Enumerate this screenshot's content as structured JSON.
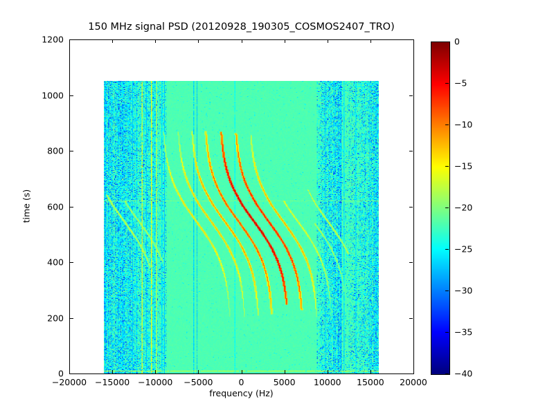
{
  "chart_data": {
    "type": "heatmap",
    "title": "150 MHz signal PSD (20120928_190305_COSMOS2407_TRO)",
    "xlabel": "frequency (Hz)",
    "ylabel": "time (s)",
    "xlim": [
      -20000,
      20000
    ],
    "ylim": [
      0,
      1200
    ],
    "x_ticks": [
      -20000,
      -15000,
      -10000,
      -5000,
      0,
      5000,
      10000,
      15000,
      20000
    ],
    "x_tick_labels": [
      "−20000",
      "−15000",
      "−10000",
      "−5000",
      "0",
      "5000",
      "10000",
      "15000",
      "20000"
    ],
    "y_ticks": [
      0,
      200,
      400,
      600,
      800,
      1000,
      1200
    ],
    "y_tick_labels": [
      "0",
      "200",
      "400",
      "600",
      "800",
      "1000",
      "1200"
    ],
    "grid": false,
    "legend": "none",
    "colorbar": {
      "cmap": "jet",
      "vmin": -40,
      "vmax": 0,
      "ticks": [
        0,
        -5,
        -10,
        -15,
        -20,
        -25,
        -30,
        -35,
        -40
      ],
      "tick_labels": [
        "0",
        "−5",
        "−10",
        "−15",
        "−20",
        "−25",
        "−30",
        "−35",
        "−40"
      ],
      "position": "right"
    },
    "data_extent": {
      "freq": [
        -16000,
        16000
      ],
      "time": [
        0,
        1050
      ]
    },
    "background_level_db": -22,
    "noise_bands": [
      {
        "freq": [
          -16000,
          -8800
        ],
        "level_db": [
          -34,
          -23
        ],
        "density": 1.0
      },
      {
        "freq": [
          8800,
          11600
        ],
        "level_db": [
          -34,
          -23
        ],
        "density": 1.0
      },
      {
        "freq": [
          11600,
          13200
        ],
        "level_db": [
          -32,
          -23
        ],
        "density": 0.45
      },
      {
        "freq": [
          13200,
          16000
        ],
        "level_db": [
          -34,
          -23
        ],
        "density": 0.9
      }
    ],
    "vertical_lines": [
      {
        "freq": -12750,
        "level_db": -27
      },
      {
        "freq": -12350,
        "level_db": -26
      },
      {
        "freq": -11600,
        "level_db": -17
      },
      {
        "freq": -11150,
        "level_db": -27
      },
      {
        "freq": -10500,
        "level_db": -16
      },
      {
        "freq": -10250,
        "level_db": -26
      },
      {
        "freq": -9950,
        "level_db": -18
      },
      {
        "freq": -9300,
        "level_db": -26
      },
      {
        "freq": -9050,
        "level_db": -27
      },
      {
        "freq": -5600,
        "level_db": -26.5
      },
      {
        "freq": -5250,
        "level_db": -27
      },
      {
        "freq": -800,
        "level_db": -24.5
      },
      {
        "freq": 9650,
        "level_db": -27
      },
      {
        "freq": 11900,
        "level_db": -26
      },
      {
        "freq": 13300,
        "level_db": -26
      },
      {
        "freq": 14850,
        "level_db": -26.5
      }
    ],
    "horizontal_lines": [
      {
        "time": 8,
        "level_db": -17
      },
      {
        "time": 620,
        "level_db": -20.5
      }
    ],
    "doppler_model": {
      "t_mid": 545,
      "amplitude_hz": 4000,
      "tau_s": 170
    },
    "doppler_traces": [
      {
        "f_center": -13600,
        "peak_db": -17,
        "t_range": [
          380,
          640
        ]
      },
      {
        "f_center": -11900,
        "peak_db": -18,
        "t_range": [
          400,
          620
        ]
      },
      {
        "f_center": -5200,
        "peak_db": -14,
        "t_range": [
          205,
          865
        ]
      },
      {
        "f_center": -3500,
        "peak_db": -13,
        "t_range": [
          205,
          866
        ]
      },
      {
        "f_center": -1900,
        "peak_db": -11,
        "t_range": [
          210,
          868
        ]
      },
      {
        "f_center": -300,
        "peak_db": -8,
        "t_range": [
          215,
          868
        ]
      },
      {
        "f_center": 1500,
        "peak_db": -3,
        "t_range": [
          250,
          866
        ]
      },
      {
        "f_center": 3200,
        "peak_db": -6,
        "t_range": [
          230,
          862
        ]
      },
      {
        "f_center": 4900,
        "peak_db": -12,
        "t_range": [
          205,
          855
        ]
      },
      {
        "f_center": 6600,
        "peak_db": -16,
        "t_range": [
          200,
          620
        ]
      },
      {
        "f_center": 8400,
        "peak_db": -18,
        "t_range": [
          200,
          540
        ]
      },
      {
        "f_center": 10100,
        "peak_db": -17,
        "t_range": [
          430,
          660
        ]
      }
    ]
  }
}
